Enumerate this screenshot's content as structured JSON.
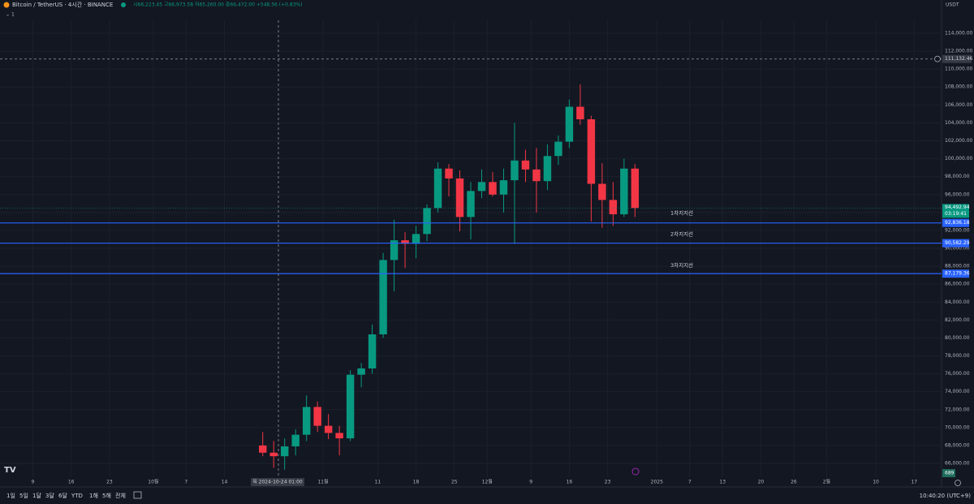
{
  "header": {
    "symbol": "Bitcoin / TetherUS · 4시간 · BINANCE",
    "ohlc": "시66,223.45 고66,973.58 저65,260.00 종66,472.00 +548.56 (+0.83%)",
    "collapse": "1"
  },
  "chart_data": {
    "type": "candlestick",
    "currency": "USDT",
    "candles": {
      "x": [
        "2024-10-20",
        "2024-10-22",
        "2024-10-24",
        "2024-10-26",
        "2024-10-28",
        "2024-10-30",
        "2024-11-01",
        "2024-11-03",
        "2024-11-05",
        "2024-11-07",
        "2024-11-09",
        "2024-11-11",
        "2024-11-13",
        "2024-11-15",
        "2024-11-17",
        "2024-11-19",
        "2024-11-21",
        "2024-11-23",
        "2024-11-25",
        "2024-11-27",
        "2024-11-29",
        "2024-12-01",
        "2024-12-03",
        "2024-12-05",
        "2024-12-07",
        "2024-12-09",
        "2024-12-11",
        "2024-12-13",
        "2024-12-15",
        "2024-12-17",
        "2024-12-19",
        "2024-12-21",
        "2024-12-23",
        "2024-12-25",
        "2024-12-27"
      ],
      "open": [
        68000,
        67200,
        66800,
        67900,
        69200,
        72300,
        70200,
        69400,
        68800,
        75900,
        76600,
        80400,
        88700,
        90900,
        90500,
        91600,
        94500,
        98900,
        97800,
        93500,
        96400,
        97400,
        96000,
        97600,
        99800,
        98800,
        97500,
        100300,
        101900,
        105800,
        104400,
        97200,
        95400,
        93800,
        98900
      ],
      "high": [
        69500,
        68500,
        68800,
        69800,
        73600,
        72900,
        71500,
        70200,
        76400,
        77200,
        81500,
        89500,
        93200,
        91800,
        92500,
        94900,
        99600,
        99400,
        98700,
        97400,
        98800,
        98500,
        98900,
        104000,
        101000,
        101200,
        101600,
        102600,
        106600,
        108300,
        104800,
        99500,
        97400,
        100000,
        99400
      ],
      "low": [
        66800,
        65500,
        65300,
        66900,
        68500,
        69500,
        68700,
        66900,
        68500,
        74500,
        76000,
        80000,
        85200,
        87800,
        88900,
        90800,
        94000,
        95800,
        91900,
        91000,
        95600,
        95800,
        94000,
        90500,
        97400,
        94000,
        96500,
        99300,
        101200,
        103800,
        93000,
        92300,
        92500,
        93500,
        93500
      ],
      "close": [
        67200,
        66800,
        67900,
        69200,
        72300,
        70200,
        69400,
        68800,
        75900,
        76600,
        80400,
        88700,
        90900,
        90500,
        91600,
        94500,
        98900,
        97800,
        93500,
        96400,
        97400,
        96000,
        97600,
        99800,
        98800,
        97500,
        100300,
        101900,
        105800,
        104400,
        97200,
        95400,
        93800,
        98900,
        94500
      ]
    },
    "up_color": "#089981",
    "down_color": "#f23645",
    "levels": [
      {
        "name": "1차지지선",
        "value": 92836.18,
        "label": "92,836.18"
      },
      {
        "name": "2차지지선",
        "value": 90582.29,
        "label": "90,582.29"
      },
      {
        "name": "3차지지선",
        "value": 87179.36,
        "label": "87,179.36"
      }
    ],
    "level_color": "#2962ff",
    "last_price": {
      "value": 94492.94,
      "label": "94,492.94",
      "countdown": "03:19:41"
    },
    "crosshair": {
      "value": 111132.46,
      "label": "111,132.46",
      "time": "목 2024-10-24   01:00"
    },
    "volume_label": 689,
    "xlim": [
      "2024-09-03",
      "2025-02-22"
    ],
    "xticks": [
      {
        "value": "2024-09-09",
        "label": "9"
      },
      {
        "value": "2024-09-16",
        "label": "16"
      },
      {
        "value": "2024-09-23",
        "label": "23"
      },
      {
        "value": "2024-10-01",
        "label": "10월"
      },
      {
        "value": "2024-10-07",
        "label": "7"
      },
      {
        "value": "2024-10-14",
        "label": "14"
      },
      {
        "value": "2024-11-01",
        "label": "11월"
      },
      {
        "value": "2024-11-11",
        "label": "11"
      },
      {
        "value": "2024-11-18",
        "label": "18"
      },
      {
        "value": "2024-11-25",
        "label": "25"
      },
      {
        "value": "2024-12-01",
        "label": "12월"
      },
      {
        "value": "2024-12-09",
        "label": "9"
      },
      {
        "value": "2024-12-16",
        "label": "16"
      },
      {
        "value": "2024-12-23",
        "label": "23"
      },
      {
        "value": "2025-01-01",
        "label": "2025"
      },
      {
        "value": "2025-01-07",
        "label": "7"
      },
      {
        "value": "2025-01-13",
        "label": "13"
      },
      {
        "value": "2025-01-20",
        "label": "20"
      },
      {
        "value": "2025-01-26",
        "label": "26"
      },
      {
        "value": "2025-02-01",
        "label": "2월"
      },
      {
        "value": "2025-02-10",
        "label": "10"
      },
      {
        "value": "2025-02-17",
        "label": "17"
      }
    ],
    "ylim": [
      63374,
      117713
    ],
    "yticks": [
      {
        "value": 66000,
        "label": "66,000.00"
      },
      {
        "value": 68000,
        "label": "68,000.00"
      },
      {
        "value": 70000,
        "label": "70,000.00"
      },
      {
        "value": 72000,
        "label": "72,000.00"
      },
      {
        "value": 74000,
        "label": "74,000.00"
      },
      {
        "value": 76000,
        "label": "76,000.00"
      },
      {
        "value": 78000,
        "label": "78,000.00"
      },
      {
        "value": 80000,
        "label": "80,000.00"
      },
      {
        "value": 82000,
        "label": "82,000.00"
      },
      {
        "value": 84000,
        "label": "84,000.00"
      },
      {
        "value": 86000,
        "label": "86,000.00"
      },
      {
        "value": 88000,
        "label": "88,000.00"
      },
      {
        "value": 90000,
        "label": "90,000.00"
      },
      {
        "value": 92000,
        "label": "92,000.00"
      },
      {
        "value": 94000,
        "label": "94,000.00"
      },
      {
        "value": 96000,
        "label": "96,000.00"
      },
      {
        "value": 98000,
        "label": "98,000.00"
      },
      {
        "value": 100000,
        "label": "100,000.00"
      },
      {
        "value": 102000,
        "label": "102,000.00"
      },
      {
        "value": 104000,
        "label": "104,000.00"
      },
      {
        "value": 106000,
        "label": "106,000.00"
      },
      {
        "value": 108000,
        "label": "108,000.00"
      },
      {
        "value": 110000,
        "label": "110,000.00"
      },
      {
        "value": 112000,
        "label": "112,000.00"
      },
      {
        "value": 114000,
        "label": "114,000.00"
      }
    ],
    "grid": true
  },
  "toolbar": {
    "ranges": [
      "1일",
      "5일",
      "1달",
      "3달",
      "6달",
      "YTD",
      "1해",
      "5해",
      "전체"
    ],
    "clock": "10:40:20 (UTC+9)"
  }
}
